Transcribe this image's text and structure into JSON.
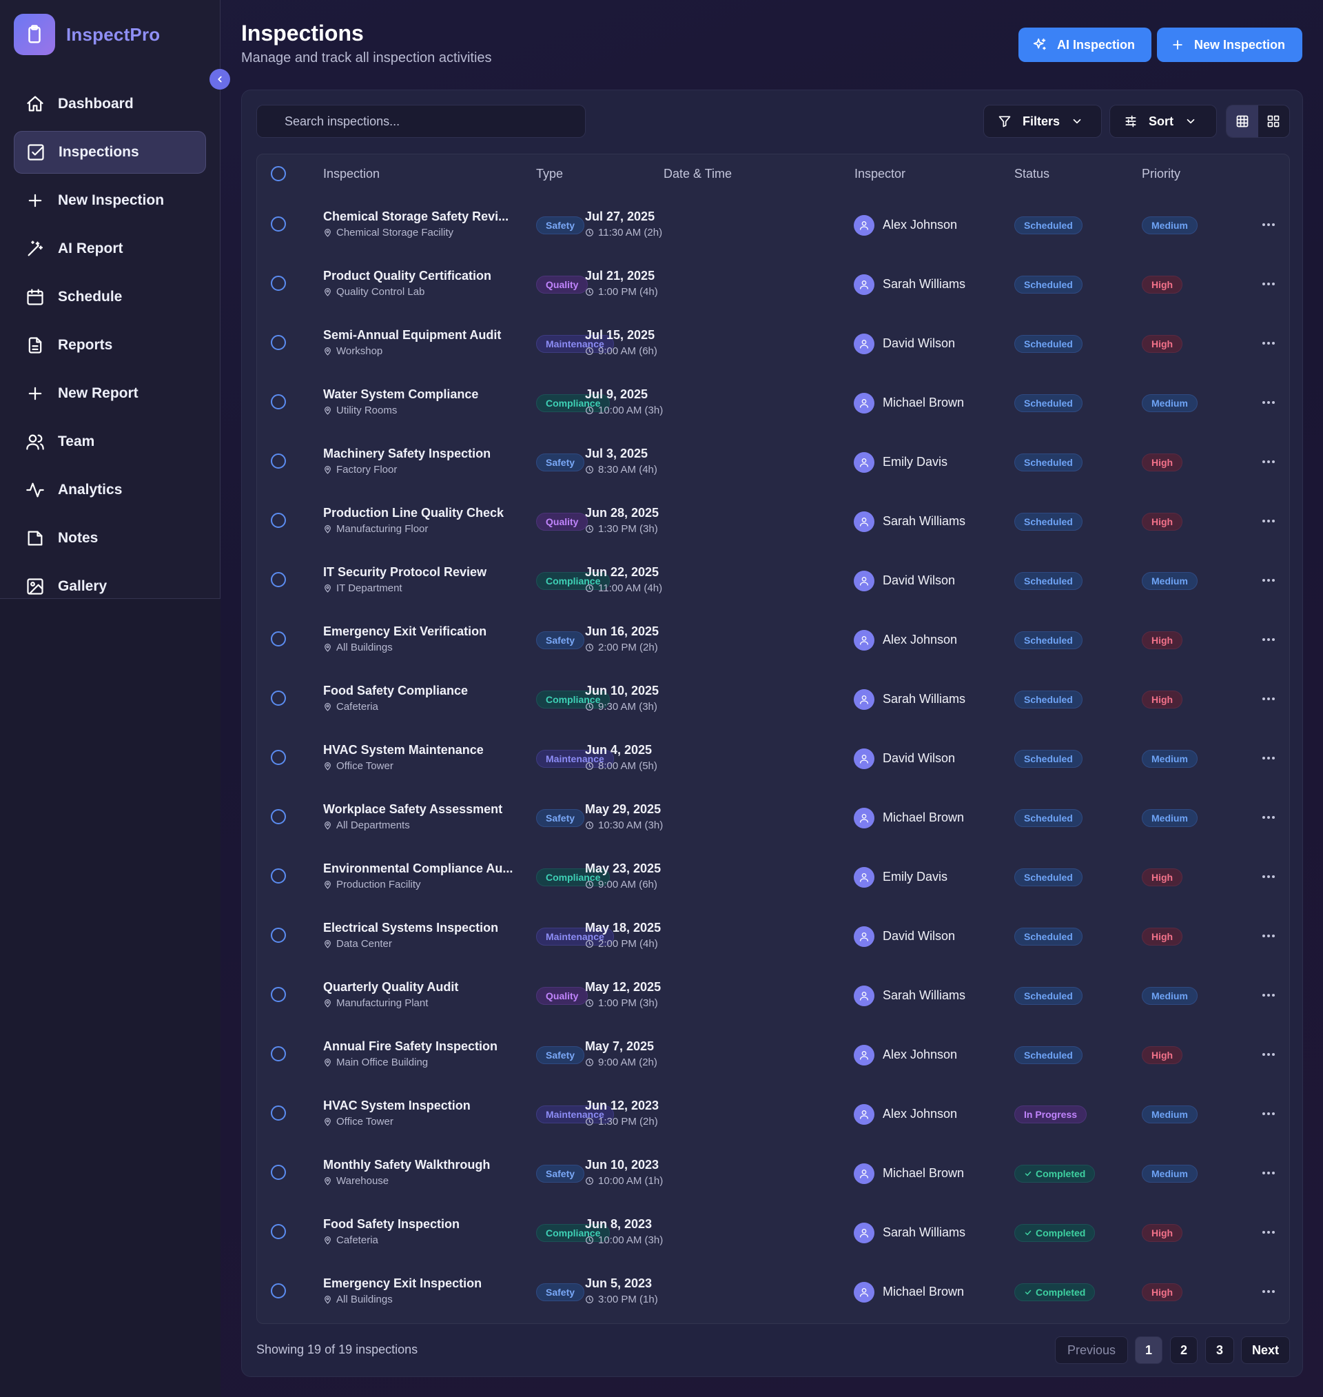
{
  "brand": {
    "name": "InspectPro"
  },
  "sidebar": {
    "items": [
      {
        "label": "Dashboard",
        "icon": "home-icon"
      },
      {
        "label": "Inspections",
        "icon": "clipboard-check-icon",
        "active": true
      },
      {
        "label": "New Inspection",
        "icon": "plus-icon"
      },
      {
        "label": "AI Report",
        "icon": "magic-wand-icon"
      },
      {
        "label": "Schedule",
        "icon": "calendar-icon"
      },
      {
        "label": "Reports",
        "icon": "document-icon"
      },
      {
        "label": "New Report",
        "icon": "plus-icon"
      },
      {
        "label": "Team",
        "icon": "users-icon"
      },
      {
        "label": "Analytics",
        "icon": "activity-icon"
      },
      {
        "label": "Notes",
        "icon": "note-icon"
      },
      {
        "label": "Gallery",
        "icon": "image-icon"
      }
    ]
  },
  "header": {
    "title": "Inspections",
    "subtitle": "Manage and track all inspection activities",
    "ai_button": "AI Inspection",
    "new_button": "New Inspection"
  },
  "toolbar": {
    "search_placeholder": "Search inspections...",
    "filters_label": "Filters",
    "sort_label": "Sort"
  },
  "table": {
    "columns": [
      "Inspection",
      "Type",
      "Date & Time",
      "Inspector",
      "Status",
      "Priority"
    ],
    "rows": [
      {
        "name": "Chemical Storage Safety Revi...",
        "location": "Chemical Storage Facility",
        "type": "Safety",
        "date": "Jul 27, 2025",
        "time": "11:30 AM (2h)",
        "inspector": "Alex Johnson",
        "status": "Scheduled",
        "priority": "Medium"
      },
      {
        "name": "Product Quality Certification",
        "location": "Quality Control Lab",
        "type": "Quality",
        "date": "Jul 21, 2025",
        "time": "1:00 PM (4h)",
        "inspector": "Sarah Williams",
        "status": "Scheduled",
        "priority": "High"
      },
      {
        "name": "Semi-Annual Equipment Audit",
        "location": "Workshop",
        "type": "Maintenance",
        "date": "Jul 15, 2025",
        "time": "9:00 AM (6h)",
        "inspector": "David Wilson",
        "status": "Scheduled",
        "priority": "High"
      },
      {
        "name": "Water System Compliance",
        "location": "Utility Rooms",
        "type": "Compliance",
        "date": "Jul 9, 2025",
        "time": "10:00 AM (3h)",
        "inspector": "Michael Brown",
        "status": "Scheduled",
        "priority": "Medium"
      },
      {
        "name": "Machinery Safety Inspection",
        "location": "Factory Floor",
        "type": "Safety",
        "date": "Jul 3, 2025",
        "time": "8:30 AM (4h)",
        "inspector": "Emily Davis",
        "status": "Scheduled",
        "priority": "High"
      },
      {
        "name": "Production Line Quality Check",
        "location": "Manufacturing Floor",
        "type": "Quality",
        "date": "Jun 28, 2025",
        "time": "1:30 PM (3h)",
        "inspector": "Sarah Williams",
        "status": "Scheduled",
        "priority": "High"
      },
      {
        "name": "IT Security Protocol Review",
        "location": "IT Department",
        "type": "Compliance",
        "date": "Jun 22, 2025",
        "time": "11:00 AM (4h)",
        "inspector": "David Wilson",
        "status": "Scheduled",
        "priority": "Medium"
      },
      {
        "name": "Emergency Exit Verification",
        "location": "All Buildings",
        "type": "Safety",
        "date": "Jun 16, 2025",
        "time": "2:00 PM (2h)",
        "inspector": "Alex Johnson",
        "status": "Scheduled",
        "priority": "High"
      },
      {
        "name": "Food Safety Compliance",
        "location": "Cafeteria",
        "type": "Compliance",
        "date": "Jun 10, 2025",
        "time": "9:30 AM (3h)",
        "inspector": "Sarah Williams",
        "status": "Scheduled",
        "priority": "High"
      },
      {
        "name": "HVAC System Maintenance",
        "location": "Office Tower",
        "type": "Maintenance",
        "date": "Jun 4, 2025",
        "time": "8:00 AM (5h)",
        "inspector": "David Wilson",
        "status": "Scheduled",
        "priority": "Medium"
      },
      {
        "name": "Workplace Safety Assessment",
        "location": "All Departments",
        "type": "Safety",
        "date": "May 29, 2025",
        "time": "10:30 AM (3h)",
        "inspector": "Michael Brown",
        "status": "Scheduled",
        "priority": "Medium"
      },
      {
        "name": "Environmental Compliance Au...",
        "location": "Production Facility",
        "type": "Compliance",
        "date": "May 23, 2025",
        "time": "9:00 AM (6h)",
        "inspector": "Emily Davis",
        "status": "Scheduled",
        "priority": "High"
      },
      {
        "name": "Electrical Systems Inspection",
        "location": "Data Center",
        "type": "Maintenance",
        "date": "May 18, 2025",
        "time": "2:00 PM (4h)",
        "inspector": "David Wilson",
        "status": "Scheduled",
        "priority": "High"
      },
      {
        "name": "Quarterly Quality Audit",
        "location": "Manufacturing Plant",
        "type": "Quality",
        "date": "May 12, 2025",
        "time": "1:00 PM (3h)",
        "inspector": "Sarah Williams",
        "status": "Scheduled",
        "priority": "Medium"
      },
      {
        "name": "Annual Fire Safety Inspection",
        "location": "Main Office Building",
        "type": "Safety",
        "date": "May 7, 2025",
        "time": "9:00 AM (2h)",
        "inspector": "Alex Johnson",
        "status": "Scheduled",
        "priority": "High"
      },
      {
        "name": "HVAC System Inspection",
        "location": "Office Tower",
        "type": "Maintenance",
        "date": "Jun 12, 2023",
        "time": "1:30 PM (2h)",
        "inspector": "Alex Johnson",
        "status": "In Progress",
        "priority": "Medium"
      },
      {
        "name": "Monthly Safety Walkthrough",
        "location": "Warehouse",
        "type": "Safety",
        "date": "Jun 10, 2023",
        "time": "10:00 AM (1h)",
        "inspector": "Michael Brown",
        "status": "Completed",
        "priority": "Medium"
      },
      {
        "name": "Food Safety Inspection",
        "location": "Cafeteria",
        "type": "Compliance",
        "date": "Jun 8, 2023",
        "time": "10:00 AM (3h)",
        "inspector": "Sarah Williams",
        "status": "Completed",
        "priority": "High"
      },
      {
        "name": "Emergency Exit Inspection",
        "location": "All Buildings",
        "type": "Safety",
        "date": "Jun 5, 2023",
        "time": "3:00 PM (1h)",
        "inspector": "Michael Brown",
        "status": "Completed",
        "priority": "High"
      }
    ]
  },
  "footer": {
    "count_text": "Showing 19 of 19 inspections",
    "previous": "Previous",
    "pages": [
      "1",
      "2",
      "3"
    ],
    "current_page": "1",
    "next": "Next"
  },
  "colors": {
    "accent": "#3b82f6",
    "brand": "#8f8ff5",
    "safety": "#7aa8f7",
    "quality": "#c084fc",
    "maintenance": "#8c8cf5",
    "compliance": "#3ed0b5",
    "high": "#f2728a"
  }
}
